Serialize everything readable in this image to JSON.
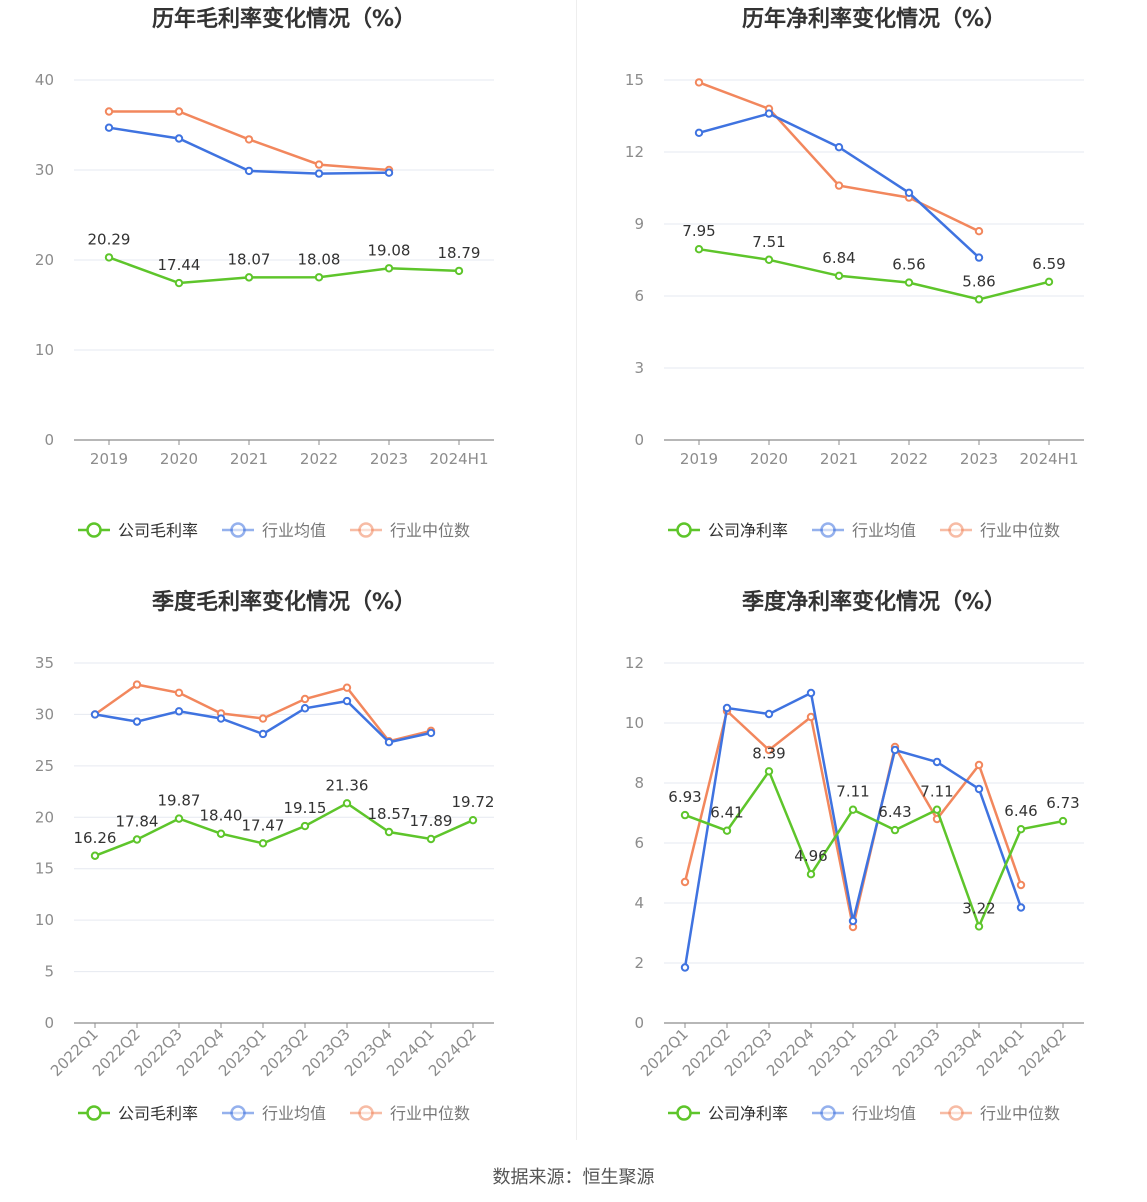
{
  "source_text": "数据来源：恒生聚源",
  "colors": {
    "company": "#5ec52b",
    "avg": "#3f73e0",
    "median": "#f2875d",
    "grid": "#e6e9f0",
    "axis": "#8c8c8c",
    "label": "#333333"
  },
  "chart_data": [
    {
      "type": "line",
      "title": "历年毛利率变化情况（%）",
      "categories": [
        "2019",
        "2020",
        "2021",
        "2022",
        "2023",
        "2024H1"
      ],
      "ylim": [
        0,
        40
      ],
      "yticks": [
        0,
        10,
        20,
        30,
        40
      ],
      "grid": true,
      "legend_position": "bottom",
      "rotate_x_labels": false,
      "series": [
        {
          "name": "公司毛利率",
          "color": "#5ec52b",
          "labels": true,
          "values": [
            20.29,
            17.44,
            18.07,
            18.08,
            19.08,
            18.79
          ]
        },
        {
          "name": "行业均值",
          "color": "#3f73e0",
          "labels": false,
          "values": [
            34.7,
            33.5,
            29.9,
            29.6,
            29.7,
            null
          ]
        },
        {
          "name": "行业中位数",
          "color": "#f2875d",
          "labels": false,
          "values": [
            36.5,
            36.5,
            33.4,
            30.6,
            30.0,
            null
          ]
        }
      ]
    },
    {
      "type": "line",
      "title": "历年净利率变化情况（%）",
      "categories": [
        "2019",
        "2020",
        "2021",
        "2022",
        "2023",
        "2024H1"
      ],
      "ylim": [
        0,
        15
      ],
      "yticks": [
        0,
        3,
        6,
        9,
        12,
        15
      ],
      "grid": true,
      "legend_position": "bottom",
      "rotate_x_labels": false,
      "series": [
        {
          "name": "公司净利率",
          "color": "#5ec52b",
          "labels": true,
          "values": [
            7.95,
            7.51,
            6.84,
            6.56,
            5.86,
            6.59
          ]
        },
        {
          "name": "行业均值",
          "color": "#3f73e0",
          "labels": false,
          "values": [
            12.8,
            13.6,
            12.2,
            10.3,
            7.6,
            null
          ]
        },
        {
          "name": "行业中位数",
          "color": "#f2875d",
          "labels": false,
          "values": [
            14.9,
            13.8,
            10.6,
            10.1,
            8.7,
            null
          ]
        }
      ]
    },
    {
      "type": "line",
      "title": "季度毛利率变化情况（%）",
      "categories": [
        "2022Q1",
        "2022Q2",
        "2022Q3",
        "2022Q4",
        "2023Q1",
        "2023Q2",
        "2023Q3",
        "2023Q4",
        "2024Q1",
        "2024Q2"
      ],
      "ylim": [
        0,
        35
      ],
      "yticks": [
        0,
        5,
        10,
        15,
        20,
        25,
        30,
        35
      ],
      "grid": true,
      "legend_position": "bottom",
      "rotate_x_labels": true,
      "series": [
        {
          "name": "公司毛利率",
          "color": "#5ec52b",
          "labels": true,
          "values": [
            16.26,
            17.84,
            19.87,
            18.4,
            17.47,
            19.15,
            21.36,
            18.57,
            17.89,
            19.72
          ]
        },
        {
          "name": "行业均值",
          "color": "#3f73e0",
          "labels": false,
          "values": [
            30.0,
            29.3,
            30.3,
            29.6,
            28.1,
            30.6,
            31.3,
            27.3,
            28.2,
            null
          ]
        },
        {
          "name": "行业中位数",
          "color": "#f2875d",
          "labels": false,
          "values": [
            30.0,
            32.9,
            32.1,
            30.1,
            29.6,
            31.5,
            32.6,
            27.4,
            28.4,
            null
          ]
        }
      ]
    },
    {
      "type": "line",
      "title": "季度净利率变化情况（%）",
      "categories": [
        "2022Q1",
        "2022Q2",
        "2022Q3",
        "2022Q4",
        "2023Q1",
        "2023Q2",
        "2023Q3",
        "2023Q4",
        "2024Q1",
        "2024Q2"
      ],
      "ylim": [
        0,
        12
      ],
      "yticks": [
        0,
        2,
        4,
        6,
        8,
        10,
        12
      ],
      "grid": true,
      "legend_position": "bottom",
      "rotate_x_labels": true,
      "series": [
        {
          "name": "公司净利率",
          "color": "#5ec52b",
          "labels": true,
          "values": [
            6.93,
            6.41,
            8.39,
            4.96,
            7.11,
            6.43,
            7.11,
            3.22,
            6.46,
            6.73
          ]
        },
        {
          "name": "行业均值",
          "color": "#3f73e0",
          "labels": false,
          "values": [
            1.85,
            10.5,
            10.3,
            11.0,
            3.4,
            9.1,
            8.7,
            7.8,
            3.85,
            null
          ]
        },
        {
          "name": "行业中位数",
          "color": "#f2875d",
          "labels": false,
          "values": [
            4.7,
            10.4,
            9.1,
            10.2,
            3.2,
            9.2,
            6.8,
            8.6,
            4.6,
            null
          ]
        }
      ]
    }
  ]
}
